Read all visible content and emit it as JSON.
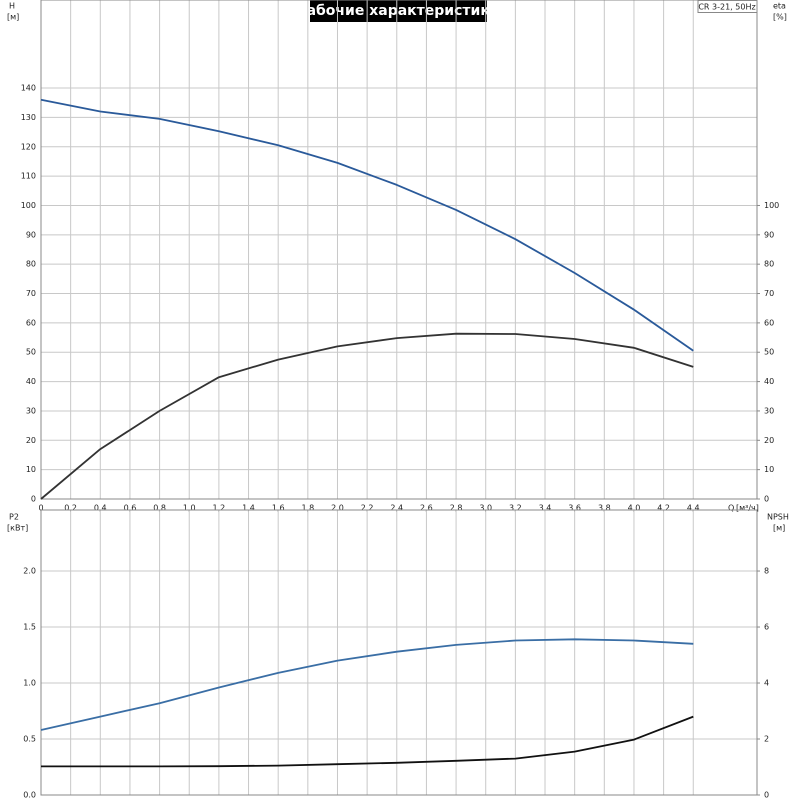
{
  "chart_data": [
    {
      "type": "line",
      "title": "Рабочие характеристики",
      "model": "CR 3-21, 50Hz",
      "y_label": "H",
      "y_unit": "[м]",
      "y2_label": "eta",
      "y2_unit": "[%]",
      "x_label": "Q",
      "x_unit": "[м³/ч]",
      "x": [
        0,
        0.4,
        0.8,
        1.2,
        1.6,
        2.0,
        2.4,
        2.8,
        3.2,
        3.6,
        4.0,
        4.4
      ],
      "xlim": [
        0,
        4.83
      ],
      "ylim": [
        0,
        170
      ],
      "y2lim": [
        0,
        170
      ],
      "grid": true,
      "xticks": [
        0,
        {
          "value": 0.2,
          "label": "0,2"
        },
        {
          "value": 0.4,
          "label": "0,4"
        },
        {
          "value": 0.6,
          "label": "0,6"
        },
        {
          "value": 0.8,
          "label": "0,8"
        },
        {
          "value": 1.0,
          "label": "1,0"
        },
        {
          "value": 1.2,
          "label": "1,2"
        },
        {
          "value": 1.4,
          "label": "1,4"
        },
        {
          "value": 1.6,
          "label": "1,6"
        },
        {
          "value": 1.8,
          "label": "1,8"
        },
        {
          "value": 2.0,
          "label": "2,0"
        },
        {
          "value": 2.2,
          "label": "2,2"
        },
        {
          "value": 2.4,
          "label": "2,4"
        },
        {
          "value": 2.6,
          "label": "2,6"
        },
        {
          "value": 2.8,
          "label": "2,8"
        },
        {
          "value": 3.0,
          "label": "3,0"
        },
        {
          "value": 3.2,
          "label": "3,2"
        },
        {
          "value": 3.4,
          "label": "3,4"
        },
        {
          "value": 3.6,
          "label": "3,6"
        },
        {
          "value": 3.8,
          "label": "3,8"
        },
        {
          "value": 4.0,
          "label": "4,0"
        },
        {
          "value": 4.2,
          "label": "4,2"
        },
        {
          "value": 4.4,
          "label": "4,4"
        }
      ],
      "yticks": [
        0,
        10,
        20,
        30,
        40,
        50,
        60,
        70,
        80,
        90,
        100,
        110,
        120,
        130,
        140
      ],
      "y2ticks": [
        0,
        10,
        20,
        30,
        40,
        50,
        60,
        70,
        80,
        90,
        100
      ],
      "series": [
        {
          "color": "#2a5a9a",
          "values": [
            136,
            132,
            129.5,
            125.3,
            120.5,
            114.5,
            107,
            98.5,
            88.5,
            77,
            64.5,
            50.5
          ]
        },
        {
          "color": "#333333",
          "axis": "y2",
          "values": [
            0,
            17,
            30,
            41.5,
            47.5,
            52,
            54.8,
            56.3,
            56.2,
            54.5,
            51.5,
            45
          ]
        }
      ]
    },
    {
      "type": "line",
      "y_label": "P2",
      "y_unit": "[кВт]",
      "y2_label": "NPSH",
      "y2_unit": "[м]",
      "x": [
        0,
        0.4,
        0.8,
        1.2,
        1.6,
        2.0,
        2.4,
        2.8,
        3.2,
        3.6,
        4.0,
        4.4
      ],
      "xlim": [
        0,
        4.83
      ],
      "ylim": [
        0,
        2.545
      ],
      "y2lim": [
        0,
        10.18
      ],
      "grid": true,
      "yticks": [
        {
          "value": 0,
          "label": "0.0"
        },
        {
          "value": 0.5,
          "label": "0.5"
        },
        {
          "value": 1.0,
          "label": "1.0"
        },
        {
          "value": 1.5,
          "label": "1.5"
        },
        {
          "value": 2.0,
          "label": "2.0"
        }
      ],
      "y2ticks": [
        0,
        2,
        4,
        6,
        8
      ],
      "series": [
        {
          "color": "#3a6ea5",
          "values": [
            0.58,
            0.7,
            0.82,
            0.96,
            1.09,
            1.2,
            1.28,
            1.34,
            1.38,
            1.39,
            1.38,
            1.35
          ]
        },
        {
          "color": "#111111",
          "axis": "y2",
          "values": [
            1.02,
            1.02,
            1.02,
            1.03,
            1.05,
            1.1,
            1.15,
            1.22,
            1.3,
            1.55,
            1.98,
            2.8
          ]
        }
      ]
    }
  ]
}
